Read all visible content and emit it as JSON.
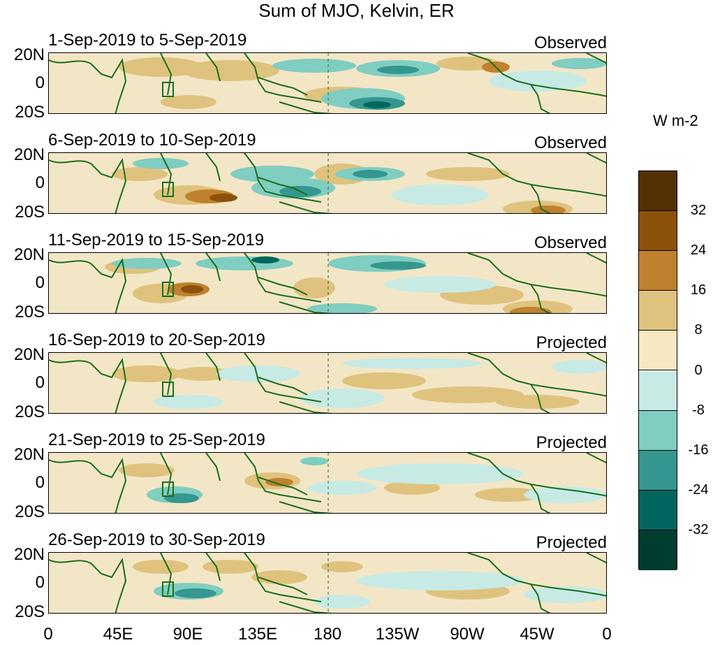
{
  "title": "Sum of MJO, Kelvin, ER",
  "colorbar": {
    "units": "W m-2",
    "labels": [
      "32",
      "24",
      "16",
      "8",
      "0",
      "-8",
      "-16",
      "-24",
      "-32"
    ],
    "colors": [
      "#543005",
      "#8c510a",
      "#bf812d",
      "#dfc27d",
      "#f6e8c3",
      "#c7eae5",
      "#80cdc1",
      "#35978f",
      "#01665e",
      "#003c30"
    ]
  },
  "lat_ticks": [
    "20N",
    "0",
    "20S"
  ],
  "lon_ticks": [
    "0",
    "45E",
    "90E",
    "135E",
    "180",
    "135W",
    "90W",
    "45W",
    "0"
  ],
  "panels": [
    {
      "period": "1-Sep-2019 to 5-Sep-2019",
      "type": "Observed"
    },
    {
      "period": "6-Sep-2019 to 10-Sep-2019",
      "type": "Observed"
    },
    {
      "period": "11-Sep-2019 to 15-Sep-2019",
      "type": "Observed"
    },
    {
      "period": "16-Sep-2019 to 20-Sep-2019",
      "type": "Projected"
    },
    {
      "period": "21-Sep-2019 to 25-Sep-2019",
      "type": "Projected"
    },
    {
      "period": "26-Sep-2019 to 30-Sep-2019",
      "type": "Projected"
    }
  ]
}
